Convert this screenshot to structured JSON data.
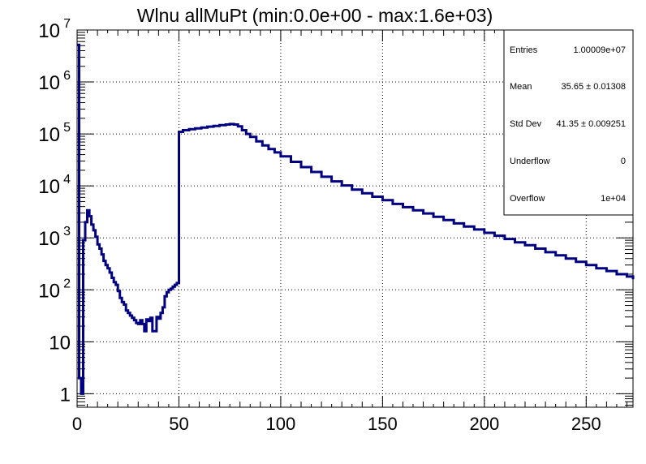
{
  "chart_data": {
    "type": "histogram-step",
    "title": "Wlnu allMuPt (min:0.0e+00 - max:1.6e+03)",
    "xlabel": "",
    "ylabel": "",
    "xlim": [
      0,
      273
    ],
    "ylim": [
      0.55,
      10000000
    ],
    "yscale": "log",
    "grid": true,
    "line_color": "#000080",
    "x_ticks": [
      0,
      50,
      100,
      150,
      200,
      250
    ],
    "x_tick_labels": [
      "0",
      "50",
      "100",
      "150",
      "200",
      "250"
    ],
    "y_ticks": [
      1,
      10,
      100,
      1000,
      10000,
      100000,
      1000000,
      10000000
    ],
    "y_tick_labels": [
      {
        "base": "1",
        "exp": ""
      },
      {
        "base": "10",
        "exp": ""
      },
      {
        "base": "10",
        "exp": "2"
      },
      {
        "base": "10",
        "exp": "3"
      },
      {
        "base": "10",
        "exp": "4"
      },
      {
        "base": "10",
        "exp": "5"
      },
      {
        "base": "10",
        "exp": "6"
      },
      {
        "base": "10",
        "exp": "7"
      }
    ],
    "points": [
      [
        0,
        5200000
      ],
      [
        1,
        2
      ],
      [
        2,
        1
      ],
      [
        3,
        900
      ],
      [
        4,
        2000
      ],
      [
        5,
        3400
      ],
      [
        6,
        2600
      ],
      [
        7,
        1800
      ],
      [
        8,
        1400
      ],
      [
        9,
        1050
      ],
      [
        10,
        750
      ],
      [
        11,
        620
      ],
      [
        12,
        480
      ],
      [
        13,
        360
      ],
      [
        14,
        300
      ],
      [
        15,
        260
      ],
      [
        16,
        215
      ],
      [
        17,
        170
      ],
      [
        18,
        140
      ],
      [
        19,
        125
      ],
      [
        20,
        95
      ],
      [
        21,
        70
      ],
      [
        22,
        58
      ],
      [
        23,
        52
      ],
      [
        24,
        40
      ],
      [
        25,
        36
      ],
      [
        26,
        32
      ],
      [
        27,
        29
      ],
      [
        28,
        26
      ],
      [
        29,
        23
      ],
      [
        30,
        22
      ],
      [
        31,
        26
      ],
      [
        32,
        22
      ],
      [
        33,
        16
      ],
      [
        34,
        27
      ],
      [
        35,
        25
      ],
      [
        36,
        29
      ],
      [
        37,
        16
      ],
      [
        38,
        16
      ],
      [
        39,
        30
      ],
      [
        40,
        28
      ],
      [
        41,
        36
      ],
      [
        42,
        46
      ],
      [
        43,
        75
      ],
      [
        44,
        90
      ],
      [
        45,
        100
      ],
      [
        46,
        105
      ],
      [
        47,
        115
      ],
      [
        48,
        125
      ],
      [
        49,
        135
      ],
      [
        50,
        110000
      ],
      [
        52,
        118000
      ],
      [
        55,
        123000
      ],
      [
        58,
        128000
      ],
      [
        61,
        133000
      ],
      [
        64,
        138000
      ],
      [
        67,
        143000
      ],
      [
        70,
        148000
      ],
      [
        73,
        152000
      ],
      [
        75,
        155000
      ],
      [
        77,
        152000
      ],
      [
        79,
        140000
      ],
      [
        81,
        118000
      ],
      [
        83,
        100000
      ],
      [
        85,
        88000
      ],
      [
        88,
        72000
      ],
      [
        91,
        60000
      ],
      [
        94,
        51000
      ],
      [
        97,
        44000
      ],
      [
        100,
        37000
      ],
      [
        105,
        29000
      ],
      [
        110,
        23000
      ],
      [
        115,
        18500
      ],
      [
        120,
        15000
      ],
      [
        125,
        12200
      ],
      [
        130,
        10200
      ],
      [
        135,
        8500
      ],
      [
        140,
        7200
      ],
      [
        145,
        6200
      ],
      [
        150,
        5300
      ],
      [
        155,
        4500
      ],
      [
        160,
        3900
      ],
      [
        165,
        3400
      ],
      [
        170,
        2950
      ],
      [
        175,
        2550
      ],
      [
        180,
        2200
      ],
      [
        185,
        1900
      ],
      [
        190,
        1650
      ],
      [
        195,
        1450
      ],
      [
        200,
        1250
      ],
      [
        205,
        1100
      ],
      [
        210,
        950
      ],
      [
        215,
        820
      ],
      [
        220,
        720
      ],
      [
        225,
        620
      ],
      [
        230,
        530
      ],
      [
        235,
        460
      ],
      [
        240,
        400
      ],
      [
        245,
        345
      ],
      [
        250,
        300
      ],
      [
        255,
        260
      ],
      [
        260,
        230
      ],
      [
        265,
        200
      ],
      [
        270,
        180
      ],
      [
        273,
        160
      ]
    ],
    "stats": {
      "entries_label": "Entries",
      "entries_value": "1.00009e+07",
      "mean_label": "Mean",
      "mean_value": "35.65 ± 0.01308",
      "stddev_label": "Std Dev",
      "stddev_value": "41.35 ± 0.009251",
      "underflow_label": "Underflow",
      "underflow_value": "0",
      "overflow_label": "Overflow",
      "overflow_value": "1e+04"
    }
  }
}
